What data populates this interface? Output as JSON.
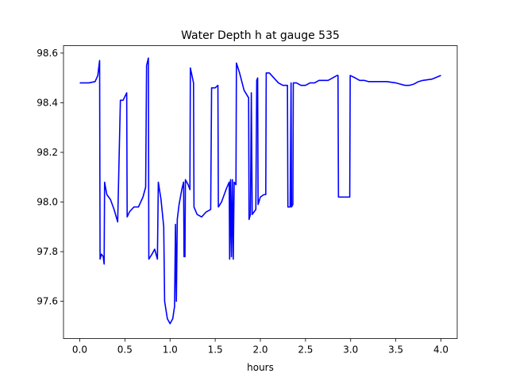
{
  "chart_data": {
    "type": "line",
    "title": "Water Depth h at gauge 535",
    "xlabel": "hours",
    "ylabel": "",
    "xlim": [
      -0.18,
      4.18
    ],
    "ylim": [
      97.45,
      98.63
    ],
    "x_ticks": [
      0.0,
      0.5,
      1.0,
      1.5,
      2.0,
      2.5,
      3.0,
      3.5,
      4.0
    ],
    "x_tick_labels": [
      "0.0",
      "0.5",
      "1.0",
      "1.5",
      "2.0",
      "2.5",
      "3.0",
      "3.5",
      "4.0"
    ],
    "y_ticks": [
      97.6,
      97.8,
      98.0,
      98.2,
      98.4,
      98.6
    ],
    "y_tick_labels": [
      "97.6",
      "97.8",
      "98.0",
      "98.2",
      "98.4",
      "98.6"
    ],
    "grid": false,
    "legend": "none",
    "series": [
      {
        "color": "#0000ff",
        "points": [
          [
            0.0,
            98.48
          ],
          [
            0.1,
            98.48
          ],
          [
            0.17,
            98.485
          ],
          [
            0.2,
            98.51
          ],
          [
            0.22,
            98.57
          ],
          [
            0.225,
            97.77
          ],
          [
            0.24,
            97.79
          ],
          [
            0.26,
            97.78
          ],
          [
            0.27,
            97.75
          ],
          [
            0.275,
            98.08
          ],
          [
            0.28,
            98.07
          ],
          [
            0.3,
            98.03
          ],
          [
            0.34,
            98.01
          ],
          [
            0.38,
            97.97
          ],
          [
            0.42,
            97.92
          ],
          [
            0.45,
            98.41
          ],
          [
            0.48,
            98.41
          ],
          [
            0.52,
            98.44
          ],
          [
            0.525,
            97.94
          ],
          [
            0.55,
            97.96
          ],
          [
            0.6,
            97.98
          ],
          [
            0.65,
            97.98
          ],
          [
            0.7,
            98.02
          ],
          [
            0.73,
            98.06
          ],
          [
            0.74,
            98.55
          ],
          [
            0.76,
            98.58
          ],
          [
            0.765,
            97.77
          ],
          [
            0.8,
            97.79
          ],
          [
            0.83,
            97.81
          ],
          [
            0.86,
            97.77
          ],
          [
            0.87,
            98.08
          ],
          [
            0.9,
            98.01
          ],
          [
            0.93,
            97.9
          ],
          [
            0.94,
            97.6
          ],
          [
            0.97,
            97.53
          ],
          [
            1.0,
            97.51
          ],
          [
            1.03,
            97.53
          ],
          [
            1.05,
            97.58
          ],
          [
            1.06,
            97.91
          ],
          [
            1.07,
            97.6
          ],
          [
            1.08,
            97.93
          ],
          [
            1.1,
            97.99
          ],
          [
            1.13,
            98.05
          ],
          [
            1.15,
            98.08
          ],
          [
            1.155,
            97.78
          ],
          [
            1.165,
            97.78
          ],
          [
            1.17,
            98.09
          ],
          [
            1.2,
            98.07
          ],
          [
            1.22,
            98.05
          ],
          [
            1.225,
            98.54
          ],
          [
            1.26,
            98.48
          ],
          [
            1.265,
            97.98
          ],
          [
            1.3,
            97.95
          ],
          [
            1.35,
            97.94
          ],
          [
            1.4,
            97.96
          ],
          [
            1.45,
            97.97
          ],
          [
            1.46,
            98.46
          ],
          [
            1.5,
            98.46
          ],
          [
            1.53,
            98.47
          ],
          [
            1.535,
            97.98
          ],
          [
            1.57,
            98.0
          ],
          [
            1.62,
            98.05
          ],
          [
            1.655,
            98.08
          ],
          [
            1.66,
            97.77
          ],
          [
            1.67,
            98.09
          ],
          [
            1.68,
            97.78
          ],
          [
            1.69,
            98.09
          ],
          [
            1.7,
            97.77
          ],
          [
            1.71,
            98.08
          ],
          [
            1.73,
            98.07
          ],
          [
            1.735,
            98.56
          ],
          [
            1.77,
            98.52
          ],
          [
            1.82,
            98.45
          ],
          [
            1.87,
            98.42
          ],
          [
            1.875,
            97.93
          ],
          [
            1.89,
            97.95
          ],
          [
            1.9,
            98.44
          ],
          [
            1.91,
            97.95
          ],
          [
            1.95,
            97.97
          ],
          [
            1.96,
            98.49
          ],
          [
            1.97,
            98.5
          ],
          [
            1.975,
            97.99
          ],
          [
            2.0,
            98.02
          ],
          [
            2.04,
            98.03
          ],
          [
            2.06,
            98.03
          ],
          [
            2.065,
            98.52
          ],
          [
            2.1,
            98.52
          ],
          [
            2.15,
            98.5
          ],
          [
            2.2,
            98.48
          ],
          [
            2.25,
            98.47
          ],
          [
            2.3,
            98.47
          ],
          [
            2.305,
            97.98
          ],
          [
            2.33,
            97.98
          ],
          [
            2.34,
            98.48
          ],
          [
            2.345,
            97.98
          ],
          [
            2.36,
            97.99
          ],
          [
            2.365,
            98.48
          ],
          [
            2.4,
            98.48
          ],
          [
            2.45,
            98.47
          ],
          [
            2.5,
            98.47
          ],
          [
            2.55,
            98.48
          ],
          [
            2.6,
            98.48
          ],
          [
            2.65,
            98.49
          ],
          [
            2.7,
            98.49
          ],
          [
            2.75,
            98.49
          ],
          [
            2.8,
            98.5
          ],
          [
            2.85,
            98.51
          ],
          [
            2.86,
            98.51
          ],
          [
            2.865,
            98.02
          ],
          [
            2.9,
            98.02
          ],
          [
            2.95,
            98.02
          ],
          [
            2.99,
            98.02
          ],
          [
            2.995,
            98.51
          ],
          [
            3.05,
            98.5
          ],
          [
            3.1,
            98.49
          ],
          [
            3.15,
            98.49
          ],
          [
            3.2,
            98.485
          ],
          [
            3.3,
            98.485
          ],
          [
            3.4,
            98.485
          ],
          [
            3.5,
            98.48
          ],
          [
            3.55,
            98.475
          ],
          [
            3.6,
            98.47
          ],
          [
            3.65,
            98.47
          ],
          [
            3.7,
            98.475
          ],
          [
            3.75,
            98.485
          ],
          [
            3.8,
            98.49
          ],
          [
            3.9,
            98.495
          ],
          [
            4.0,
            98.51
          ]
        ]
      }
    ]
  }
}
